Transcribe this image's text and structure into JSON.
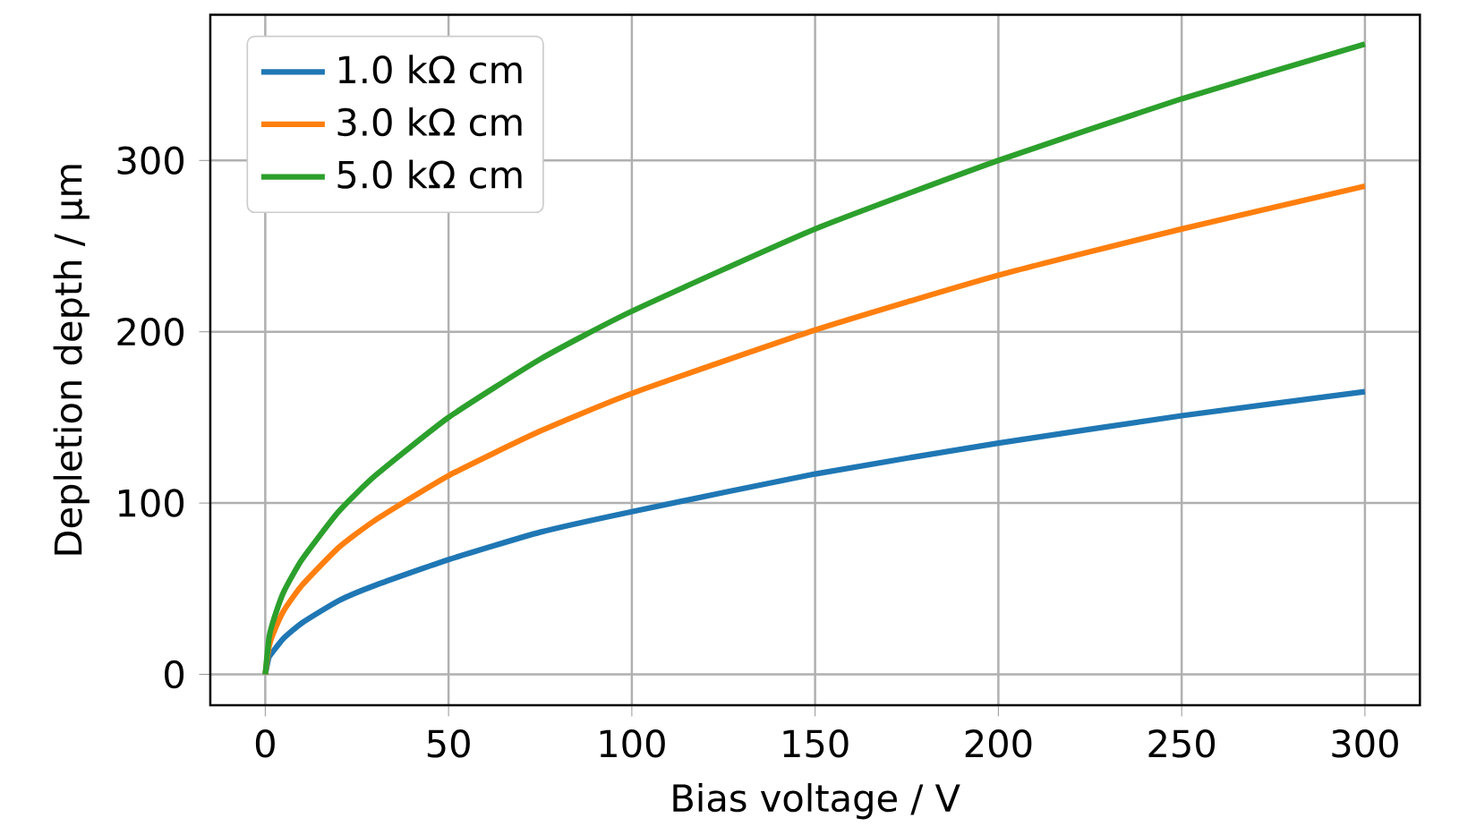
{
  "chart_data": {
    "type": "line",
    "xlabel": "Bias voltage / V",
    "ylabel": "Depletion depth / µm",
    "x": [
      0,
      1,
      2,
      5,
      10,
      20,
      30,
      50,
      75,
      100,
      150,
      200,
      250,
      300
    ],
    "series": [
      {
        "name": "1.0 kΩ cm",
        "color": "#1f77b4",
        "values": [
          0,
          10,
          13,
          21,
          30,
          43,
          52,
          67,
          83,
          95,
          117,
          135,
          151,
          165
        ]
      },
      {
        "name": "3.0 kΩ cm",
        "color": "#ff7f0e",
        "values": [
          0,
          16,
          23,
          37,
          52,
          74,
          90,
          116,
          142,
          164,
          201,
          233,
          260,
          285
        ]
      },
      {
        "name": "5.0 kΩ cm",
        "color": "#2ca02c",
        "values": [
          0,
          21,
          30,
          48,
          67,
          95,
          116,
          150,
          184,
          212,
          260,
          300,
          336,
          368
        ]
      }
    ],
    "xlim": [
      -15,
      315
    ],
    "ylim": [
      -18,
      385
    ],
    "xticks": [
      0,
      50,
      100,
      150,
      200,
      250,
      300
    ],
    "yticks": [
      0,
      100,
      200,
      300
    ],
    "grid": true,
    "legend": "top left",
    "marker": "none",
    "line_style": "solid"
  }
}
